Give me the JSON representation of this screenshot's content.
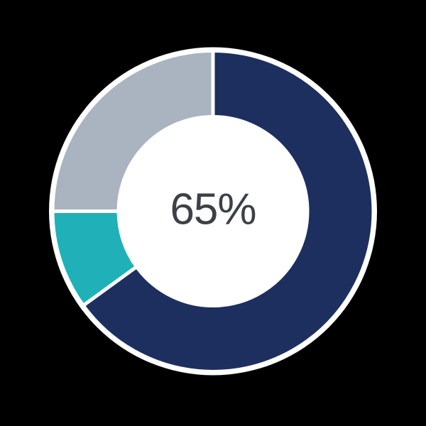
{
  "background_color": "#000000",
  "chart_data": {
    "type": "pie",
    "subtype": "donut",
    "title": "",
    "center_label": "65%",
    "center_label_color": "#3C4148",
    "start_angle_deg": 0,
    "direction": "clockwise",
    "segments": [
      {
        "value": 65,
        "color": "#1D2F5E"
      },
      {
        "value": 10,
        "color": "#1FB1B7"
      },
      {
        "value": 25,
        "color": "#AAB3C0"
      }
    ],
    "separator_color": "#FFFFFF",
    "outer_outline_color": "#FFFFFF",
    "hole_color": "#FFFFFF",
    "legend": "none",
    "axes": "none"
  }
}
